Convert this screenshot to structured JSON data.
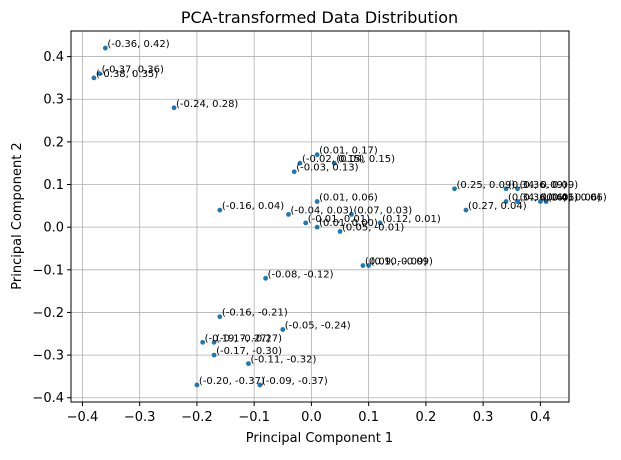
{
  "chart_data": {
    "type": "scatter",
    "title": "PCA-transformed Data Distribution",
    "xlabel": "Principal Component 1",
    "ylabel": "Principal Component 2",
    "xlim": [
      -0.42,
      0.45
    ],
    "ylim": [
      -0.41,
      0.46
    ],
    "grid": true,
    "marker_color": "#1f77b4",
    "xticks": [
      {
        "value": -0.4,
        "label": "−0.4"
      },
      {
        "value": -0.3,
        "label": "−0.3"
      },
      {
        "value": -0.2,
        "label": "−0.2"
      },
      {
        "value": -0.1,
        "label": "−0.1"
      },
      {
        "value": 0.0,
        "label": "0.0"
      },
      {
        "value": 0.1,
        "label": "0.1"
      },
      {
        "value": 0.2,
        "label": "0.2"
      },
      {
        "value": 0.3,
        "label": "0.3"
      },
      {
        "value": 0.4,
        "label": "0.4"
      }
    ],
    "yticks": [
      {
        "value": 0.4,
        "label": "0.4"
      },
      {
        "value": 0.3,
        "label": "0.3"
      },
      {
        "value": 0.2,
        "label": "0.2"
      },
      {
        "value": 0.1,
        "label": "0.1"
      },
      {
        "value": 0.0,
        "label": "0.0"
      },
      {
        "value": -0.1,
        "label": "−0.1"
      },
      {
        "value": -0.2,
        "label": "−0.2"
      },
      {
        "value": -0.3,
        "label": "−0.3"
      },
      {
        "value": -0.4,
        "label": "−0.4"
      }
    ],
    "points": [
      {
        "x": -0.36,
        "y": 0.42,
        "label": "(-0.36, 0.42)"
      },
      {
        "x": -0.38,
        "y": 0.35,
        "label": "(-0.38, 0.35)"
      },
      {
        "x": -0.37,
        "y": 0.36,
        "label": "(-0.37, 0.36)"
      },
      {
        "x": -0.24,
        "y": 0.28,
        "label": "(-0.24, 0.28)"
      },
      {
        "x": 0.01,
        "y": 0.17,
        "label": "(0.01, 0.17)"
      },
      {
        "x": -0.02,
        "y": 0.15,
        "label": "(-0.02, 0.15)"
      },
      {
        "x": 0.04,
        "y": 0.15,
        "label": "(0.04, 0.15)"
      },
      {
        "x": -0.03,
        "y": 0.13,
        "label": "(-0.03, 0.13)"
      },
      {
        "x": 0.25,
        "y": 0.09,
        "label": "(0.25, 0.09)"
      },
      {
        "x": 0.34,
        "y": 0.09,
        "label": "(0.34, 0.09)"
      },
      {
        "x": 0.36,
        "y": 0.09,
        "label": "(0.36, 0.09)"
      },
      {
        "x": 0.34,
        "y": 0.06,
        "label": "(0.34, 0.06)"
      },
      {
        "x": 0.36,
        "y": 0.06,
        "label": "(0.36, 0.06)"
      },
      {
        "x": 0.4,
        "y": 0.06,
        "label": "(0.40, 0.06)"
      },
      {
        "x": 0.41,
        "y": 0.06,
        "label": "(0.41, 0.06)"
      },
      {
        "x": 0.27,
        "y": 0.04,
        "label": "(0.27, 0.04)"
      },
      {
        "x": -0.16,
        "y": 0.04,
        "label": "(-0.16, 0.04)"
      },
      {
        "x": 0.01,
        "y": 0.06,
        "label": "(0.01, 0.06)"
      },
      {
        "x": -0.04,
        "y": 0.03,
        "label": "(-0.04, 0.03)"
      },
      {
        "x": 0.07,
        "y": 0.03,
        "label": "(0.07, 0.03)"
      },
      {
        "x": -0.01,
        "y": 0.01,
        "label": "(-0.01, 0.01)"
      },
      {
        "x": 0.12,
        "y": 0.01,
        "label": "(0.12, 0.01)"
      },
      {
        "x": 0.01,
        "y": 0.0,
        "label": "(0.01, 0.00)"
      },
      {
        "x": 0.05,
        "y": -0.01,
        "label": "(0.05, -0.01)"
      },
      {
        "x": 0.09,
        "y": -0.09,
        "label": "(0.09, -0.09)"
      },
      {
        "x": 0.1,
        "y": -0.09,
        "label": "(0.10, -0.09)"
      },
      {
        "x": -0.08,
        "y": -0.12,
        "label": "(-0.08, -0.12)"
      },
      {
        "x": -0.16,
        "y": -0.21,
        "label": "(-0.16, -0.21)"
      },
      {
        "x": -0.05,
        "y": -0.24,
        "label": "(-0.05, -0.24)"
      },
      {
        "x": -0.17,
        "y": -0.27,
        "label": "(-0.17, -0.27)"
      },
      {
        "x": -0.19,
        "y": -0.27,
        "label": "(-0.19, -0.27)"
      },
      {
        "x": -0.17,
        "y": -0.3,
        "label": "(-0.17, -0.30)"
      },
      {
        "x": -0.11,
        "y": -0.32,
        "label": "(-0.11, -0.32)"
      },
      {
        "x": -0.2,
        "y": -0.37,
        "label": "(-0.20, -0.37)"
      },
      {
        "x": -0.09,
        "y": -0.37,
        "label": "(-0.09, -0.37)"
      }
    ]
  }
}
